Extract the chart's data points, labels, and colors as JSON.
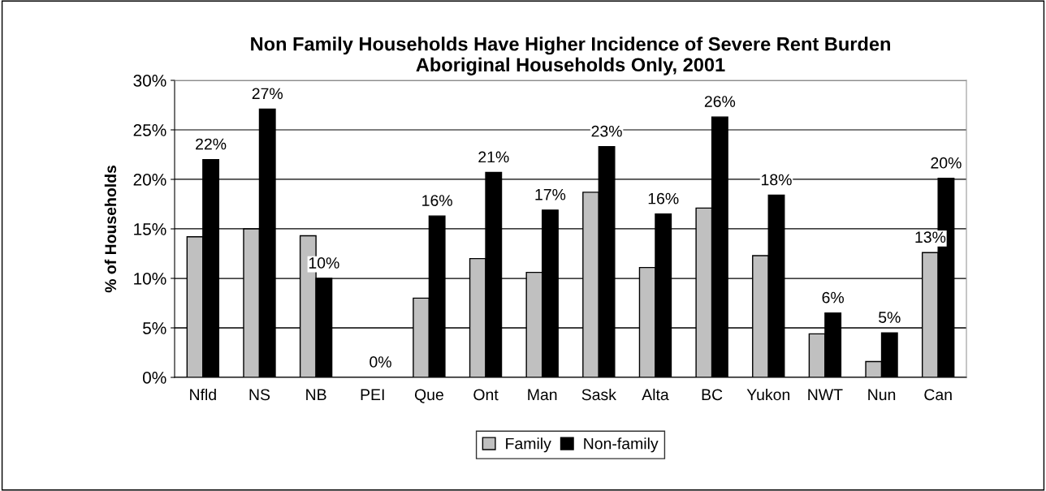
{
  "chart_data": {
    "type": "bar",
    "title": "Non Family Households Have Higher Incidence of Severe Rent Burden\nAboriginal Households Only, 2001",
    "ylabel": "% of Households",
    "categories": [
      "Nfld",
      "NS",
      "NB",
      "PEI",
      "Que",
      "Ont",
      "Man",
      "Sask",
      "Alta",
      "BC",
      "Yukon",
      "NWT",
      "Nun",
      "Can"
    ],
    "series": [
      {
        "name": "Family",
        "color": "#c0c0c0",
        "values": [
          14.2,
          15.0,
          14.3,
          null,
          8.0,
          12.0,
          10.6,
          18.7,
          11.1,
          17.1,
          12.3,
          4.4,
          1.6,
          12.6
        ],
        "value_labels": [
          null,
          null,
          null,
          null,
          null,
          null,
          null,
          null,
          null,
          null,
          null,
          null,
          null,
          "13%"
        ]
      },
      {
        "name": "Non-family",
        "color": "#000000",
        "values": [
          22.0,
          27.1,
          10.0,
          0,
          16.3,
          20.7,
          16.9,
          23.3,
          16.5,
          26.3,
          18.4,
          6.5,
          4.5,
          20.1
        ],
        "value_labels": [
          "22%",
          "27%",
          "10%",
          "0%",
          "16%",
          "21%",
          "17%",
          "23%",
          "16%",
          "26%",
          "18%",
          "6%",
          "5%",
          "20%"
        ]
      }
    ],
    "ylim": [
      0,
      30
    ],
    "yticks": [
      {
        "value": 0,
        "label": "0%"
      },
      {
        "value": 5,
        "label": "5%"
      },
      {
        "value": 10,
        "label": "10%"
      },
      {
        "value": 15,
        "label": "15%"
      },
      {
        "value": 20,
        "label": "20%"
      },
      {
        "value": 25,
        "label": "25%"
      },
      {
        "value": 30,
        "label": "30%"
      }
    ],
    "grid": "y",
    "legend": "bottom"
  }
}
